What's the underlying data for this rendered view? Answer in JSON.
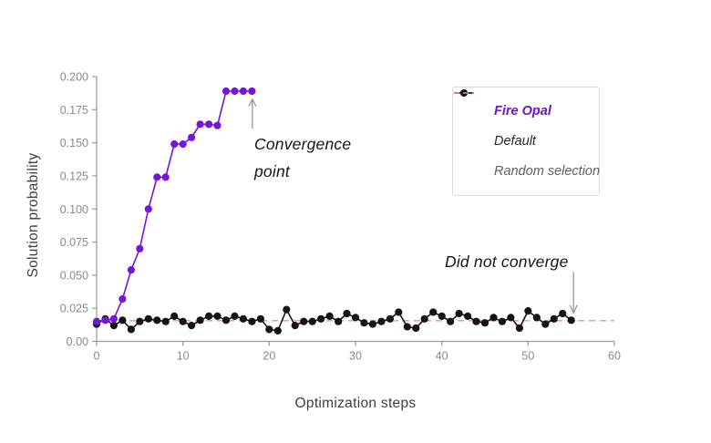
{
  "figure": {
    "background": "#ffffff",
    "axis_color": "#9a9a9a",
    "tick_text_color": "#8a8a8a",
    "annotation_arrow_color": "#8f8f8f"
  },
  "chart_data": {
    "type": "line",
    "title": "",
    "xlabel": "Optimization steps",
    "ylabel": "Solution probability",
    "xlim": [
      0,
      60
    ],
    "ylim": [
      0,
      0.2
    ],
    "grid": false,
    "x_ticks": [
      0,
      10,
      20,
      30,
      40,
      50,
      60
    ],
    "y_ticks": [
      {
        "v": 0,
        "label": "0.00"
      },
      {
        "v": 0.025,
        "label": "0.025"
      },
      {
        "v": 0.05,
        "label": "0.050"
      },
      {
        "v": 0.075,
        "label": "0.075"
      },
      {
        "v": 0.1,
        "label": "0.100"
      },
      {
        "v": 0.125,
        "label": "0.125"
      },
      {
        "v": 0.15,
        "label": "0.150"
      },
      {
        "v": 0.175,
        "label": "0.175"
      },
      {
        "v": 0.2,
        "label": "0.200"
      }
    ],
    "series": [
      {
        "name": "Fire Opal",
        "type": "line+markers",
        "color": "#7614dc",
        "x0": 0,
        "dx": 1,
        "y": [
          0.015,
          0.016,
          0.017,
          0.032,
          0.054,
          0.07,
          0.1,
          0.124,
          0.124,
          0.149,
          0.149,
          0.154,
          0.164,
          0.164,
          0.163,
          0.189,
          0.189,
          0.189,
          0.189
        ]
      },
      {
        "name": "Default",
        "type": "line+markers",
        "color": "#141414",
        "x0": 0,
        "dx": 1,
        "y": [
          0.013,
          0.017,
          0.012,
          0.016,
          0.009,
          0.015,
          0.017,
          0.016,
          0.015,
          0.019,
          0.015,
          0.012,
          0.016,
          0.019,
          0.019,
          0.016,
          0.019,
          0.017,
          0.015,
          0.017,
          0.009,
          0.008,
          0.024,
          0.012,
          0.015,
          0.015,
          0.017,
          0.019,
          0.015,
          0.021,
          0.018,
          0.014,
          0.013,
          0.015,
          0.017,
          0.022,
          0.011,
          0.01,
          0.017,
          0.022,
          0.019,
          0.015,
          0.021,
          0.019,
          0.015,
          0.014,
          0.018,
          0.015,
          0.018,
          0.01,
          0.023,
          0.018,
          0.013,
          0.017,
          0.021,
          0.016
        ]
      },
      {
        "name": "Random selection",
        "type": "hline-dashed",
        "color": "#e58ebc",
        "value": 0.0156,
        "x_range": [
          0,
          60
        ]
      }
    ],
    "legend": {
      "position": "upper right",
      "items": [
        {
          "label": "Fire Opal",
          "marker": "line-dot",
          "color": "#7614dc",
          "label_color": "#6d12d6",
          "bold": true
        },
        {
          "label": "Default",
          "marker": "line-dot",
          "color": "#141414",
          "label_color": "#2b2b2b",
          "bold": false
        },
        {
          "label": "Random selection",
          "marker": "dashes",
          "color": "#e58ebc",
          "label_color": "#5f5f5f",
          "bold": false
        }
      ]
    },
    "annotations": [
      {
        "text": "Convergence point",
        "lines": [
          "Convergence",
          "point"
        ],
        "arrow": "up",
        "target_step": 18,
        "target_value": 0.189
      },
      {
        "text": "Did not converge",
        "lines": [
          "Did not converge"
        ],
        "arrow": "down",
        "target_step": 55,
        "target_value": 0.016
      }
    ]
  }
}
